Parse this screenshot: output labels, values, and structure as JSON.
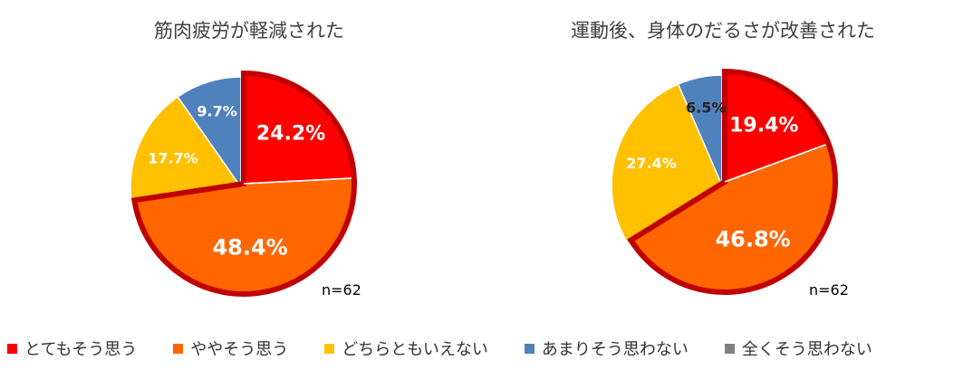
{
  "chart_data": [
    {
      "type": "pie",
      "title": "筋肉疲労が軽減された",
      "n_label": "n=62",
      "categories": [
        "とてもそう思う",
        "ややそう思う",
        "どちらともいえない",
        "あまりそう思わない",
        "全くそう思わない"
      ],
      "values": [
        24.2,
        48.4,
        17.7,
        9.7,
        0.0
      ],
      "data_labels": [
        "24.2%",
        "48.4%",
        "17.7%",
        "9.7%",
        ""
      ],
      "highlighted": [
        "とてもそう思う",
        "ややそう思う"
      ]
    },
    {
      "type": "pie",
      "title": "運動後、身体のだるさが改善された",
      "n_label": "n=62",
      "categories": [
        "とてもそう思う",
        "ややそう思う",
        "どちらともいえない",
        "あまりそう思わない",
        "全くそう思わない"
      ],
      "values": [
        19.4,
        46.8,
        27.4,
        6.5,
        0.0
      ],
      "data_labels": [
        "19.4%",
        "46.8%",
        "27.4%",
        "6.5%",
        ""
      ],
      "highlighted": [
        "とてもそう思う",
        "ややそう思う"
      ]
    }
  ],
  "legend": [
    {
      "label": "とてもそう思う",
      "color": "#ff0000"
    },
    {
      "label": "ややそう思う",
      "color": "#ff6600"
    },
    {
      "label": "どちらともいえない",
      "color": "#ffc000"
    },
    {
      "label": "あまりそう思わない",
      "color": "#4f81bd"
    },
    {
      "label": "全くそう思わない",
      "color": "#808080"
    }
  ],
  "colors": {
    "highlight_border": "#c00000",
    "label_light": "#ffffff"
  }
}
